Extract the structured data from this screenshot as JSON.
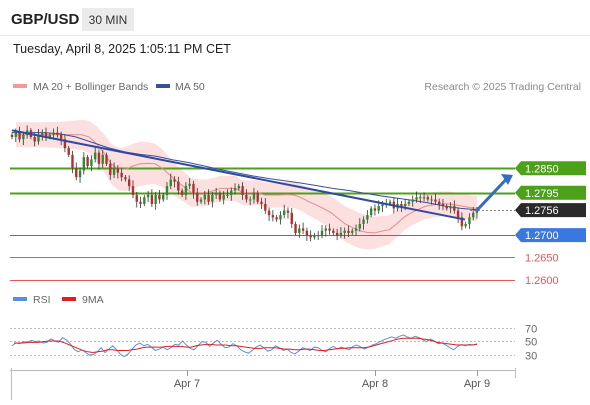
{
  "header": {
    "pair": "GBP/USD",
    "timeframe": "30 MIN",
    "datetime": "Tuesday, April 8, 2025 1:05:11 PM CET"
  },
  "legend": {
    "bollinger": "MA 20 + Bollinger Bands",
    "ma50": "MA 50",
    "copyright": "Research © 2025 Trading Central",
    "rsi": "RSI",
    "rsi_ma": "9MA"
  },
  "colors": {
    "resistance": "#4ca01a",
    "support": "#3a78e0",
    "target": "#e05a5a",
    "bollinger_fill": "#fbd9d9",
    "ma20": "#e88a8a",
    "ma50": "#3c4f9c",
    "trendline": "#2f4a9e",
    "arrow": "#3a6bc4",
    "current": "#2a2a2a",
    "candle_up": "#2f8a2f",
    "candle_down": "#b03030",
    "rsi": "#5b8ee0",
    "rsi_ma": "#e02020"
  },
  "chart_data": [
    {
      "type": "candlestick",
      "title": "GBP/USD",
      "ylim": [
        1.2595,
        1.3003
      ],
      "x_ticks": [
        "Apr 7",
        "Apr 8",
        "Apr 9"
      ],
      "price_levels": [
        {
          "label": "1.2850",
          "value": 1.285,
          "kind": "resistance"
        },
        {
          "label": "1.2795",
          "value": 1.2795,
          "kind": "resistance"
        },
        {
          "label": "1.2756",
          "value": 1.2756,
          "kind": "current"
        },
        {
          "label": "1.2700",
          "value": 1.27,
          "kind": "support"
        },
        {
          "label": "1.2650",
          "value": 1.265,
          "kind": "target"
        },
        {
          "label": "1.2600",
          "value": 1.26,
          "kind": "target"
        }
      ],
      "close": [
        1.292,
        1.293,
        1.2915,
        1.2925,
        1.2935,
        1.292,
        1.291,
        1.2925,
        1.293,
        1.292,
        1.2925,
        1.293,
        1.2925,
        1.2915,
        1.2895,
        1.288,
        1.285,
        1.283,
        1.2845,
        1.2875,
        1.2855,
        1.287,
        1.2885,
        1.286,
        1.288,
        1.286,
        1.2835,
        1.285,
        1.284,
        1.283,
        1.2825,
        1.281,
        1.279,
        1.2775,
        1.277,
        1.2785,
        1.279,
        1.277,
        1.279,
        1.278,
        1.279,
        1.281,
        1.2825,
        1.282,
        1.28,
        1.279,
        1.281,
        1.2815,
        1.2795,
        1.2775,
        1.278,
        1.279,
        1.2775,
        1.279,
        1.2795,
        1.278,
        1.279,
        1.279,
        1.28,
        1.2805,
        1.281,
        1.279,
        1.278,
        1.278,
        1.2795,
        1.2775,
        1.277,
        1.2755,
        1.2745,
        1.274,
        1.2735,
        1.2745,
        1.2755,
        1.275,
        1.2725,
        1.2705,
        1.2715,
        1.271,
        1.27,
        1.2695,
        1.27,
        1.27,
        1.271,
        1.2715,
        1.271,
        1.2705,
        1.27,
        1.2705,
        1.271,
        1.2705,
        1.271,
        1.2715,
        1.2725,
        1.2735,
        1.2745,
        1.276,
        1.2755,
        1.2765,
        1.277,
        1.277,
        1.2775,
        1.276,
        1.277,
        1.2765,
        1.277,
        1.2775,
        1.278,
        1.2785,
        1.2785,
        1.2785,
        1.278,
        1.278,
        1.2775,
        1.277,
        1.2765,
        1.276,
        1.2765,
        1.2755,
        1.274,
        1.272,
        1.2725,
        1.274,
        1.275,
        1.2756
      ],
      "ma20": [
        1.2925,
        1.2925,
        1.2925,
        1.2925,
        1.2925,
        1.2925,
        1.2925,
        1.2925,
        1.2925,
        1.2925,
        1.292,
        1.2905,
        1.2885,
        1.286,
        1.2848,
        1.2848,
        1.2855,
        1.286,
        1.2861,
        1.286,
        1.285,
        1.2835,
        1.282,
        1.2808,
        1.2795,
        1.2795,
        1.2795,
        1.28,
        1.2805,
        1.2805,
        1.2805,
        1.2795,
        1.2795,
        1.2795,
        1.279,
        1.279,
        1.279,
        1.2791,
        1.279,
        1.2784,
        1.2775,
        1.2768,
        1.276,
        1.2751,
        1.2738,
        1.2725,
        1.2717,
        1.271,
        1.2706,
        1.2705,
        1.2709,
        1.2712,
        1.2725,
        1.274,
        1.275,
        1.2758,
        1.2765,
        1.2768,
        1.277,
        1.277,
        1.2768,
        1.2765,
        1.2762,
        1.276
      ],
      "ma50": [
        1.293,
        1.293,
        1.293,
        1.2927,
        1.292,
        1.2908,
        1.2896,
        1.2887,
        1.2881,
        1.2877,
        1.2869,
        1.2863,
        1.2855,
        1.2847,
        1.284,
        1.2833,
        1.2827,
        1.2822,
        1.2817,
        1.2811,
        1.2805,
        1.28,
        1.2794,
        1.2788,
        1.2783,
        1.2778,
        1.2772,
        1.2765,
        1.276,
        1.2757
      ],
      "trendline": [
        [
          1.2935,
          1.2735
        ]
      ],
      "forecast_arrow": [
        1.2756,
        1.2835
      ]
    },
    {
      "type": "line",
      "title": "RSI",
      "ylim": [
        10,
        90
      ],
      "y_ticks": [
        30,
        50,
        70
      ],
      "series": [
        {
          "name": "RSI",
          "values": [
            43,
            47,
            46,
            49,
            48,
            51,
            49,
            50,
            47,
            48,
            53,
            50,
            48,
            55,
            52,
            46,
            38,
            34,
            37,
            33,
            29,
            30,
            34,
            40,
            33,
            38,
            43,
            37,
            30,
            27,
            31,
            38,
            44,
            47,
            43,
            45,
            41,
            36,
            38,
            41,
            37,
            40,
            45,
            44,
            50,
            44,
            39,
            37,
            43,
            49,
            48,
            42,
            47,
            51,
            45,
            40,
            41,
            46,
            43,
            37,
            34,
            32,
            36,
            41,
            44,
            40,
            35,
            37,
            43,
            40,
            36,
            38,
            33,
            31,
            35,
            40,
            38,
            36,
            41,
            40,
            36,
            34,
            39,
            42,
            38,
            41,
            39,
            37,
            42,
            44,
            41,
            38,
            41,
            44,
            46,
            49,
            52,
            54,
            56,
            54,
            57,
            59,
            56,
            54,
            57,
            55,
            52,
            49,
            53,
            50,
            46,
            47,
            44,
            40,
            37,
            42,
            45,
            43,
            45,
            44,
            46
          ]
        },
        {
          "name": "9MA",
          "values": [
            47,
            47,
            47,
            48,
            48,
            48,
            49,
            50,
            50,
            50,
            48,
            45,
            42,
            39,
            36,
            34,
            33,
            34,
            35,
            37,
            37,
            36,
            36,
            36,
            37,
            38,
            40,
            41,
            41,
            41,
            41,
            42,
            42,
            42,
            42,
            41,
            41,
            43,
            44,
            45,
            45,
            44,
            44,
            44,
            43,
            43,
            42,
            41,
            40,
            39,
            39,
            40,
            40,
            40,
            39,
            38,
            38,
            37,
            37,
            38,
            38,
            37,
            36,
            36,
            37,
            38,
            39,
            39,
            40,
            40,
            40,
            40,
            41,
            43,
            45,
            47,
            49,
            51,
            53,
            54,
            54,
            54,
            54,
            53,
            52,
            50,
            48,
            47,
            46,
            45,
            44,
            44,
            44,
            44,
            45
          ]
        }
      ]
    }
  ]
}
